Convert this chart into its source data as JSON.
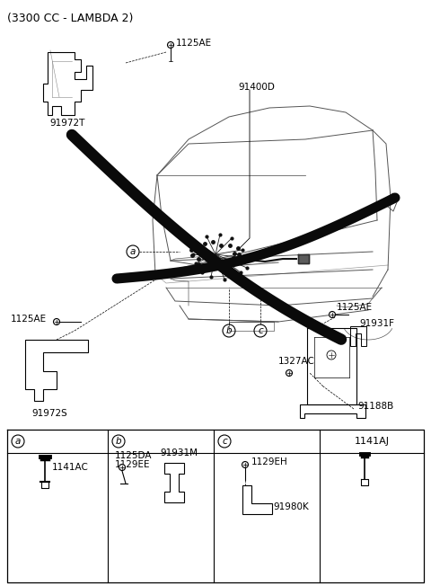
{
  "title": "(3300 CC - LAMBDA 2)",
  "bg_color": "#ffffff",
  "line_color": "#000000",
  "gray_line": "#888888",
  "light_gray": "#cccccc",
  "fig_width": 4.8,
  "fig_height": 6.52,
  "dpi": 100,
  "labels": {
    "part_91972T": "91972T",
    "part_1125AE_top": "1125AE",
    "part_91400D": "91400D",
    "part_1125AE_left": "1125AE",
    "part_91972S": "91972S",
    "part_1327AC": "1327AC",
    "part_1125AE_right": "1125AE",
    "part_91931F": "91931F",
    "part_91188B": "91188B",
    "table_a": "a",
    "table_b": "b",
    "table_c": "c",
    "table_1141AJ": "1141AJ",
    "table_1141AC": "1141AC",
    "table_1125DA": "1125DA",
    "table_1129EE": "1129EE",
    "table_91931M": "91931M",
    "table_1129EH": "1129EH",
    "table_91980K": "91980K"
  }
}
